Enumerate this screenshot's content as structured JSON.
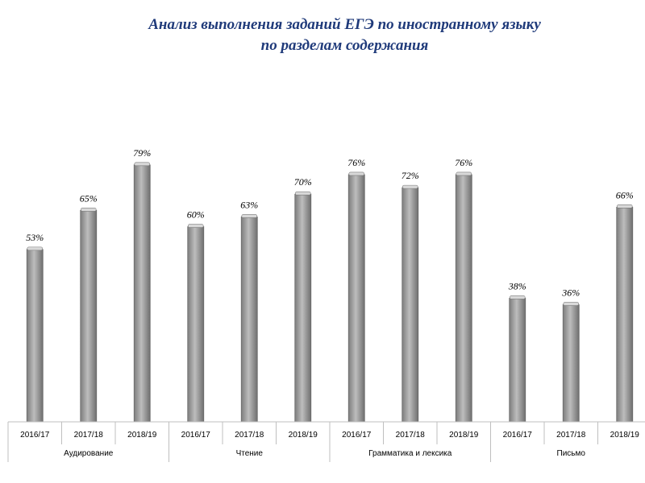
{
  "chart_data": {
    "type": "bar",
    "title_line1": "Анализ выполнения заданий ЕГЭ по иностранному языку",
    "title_line2": "по разделам содержания",
    "groups": [
      "Аудирование",
      "Чтение",
      "Грамматика и лексика",
      "Письмо"
    ],
    "years": [
      "2016/17",
      "2017/18",
      "2018/19"
    ],
    "values": [
      [
        53,
        65,
        79
      ],
      [
        60,
        63,
        70
      ],
      [
        76,
        72,
        76
      ],
      [
        38,
        36,
        66
      ]
    ],
    "value_suffix": "%",
    "ylim": [
      0,
      100
    ],
    "xlabel": "",
    "ylabel": "",
    "bar_color": "#a6a6a6"
  }
}
